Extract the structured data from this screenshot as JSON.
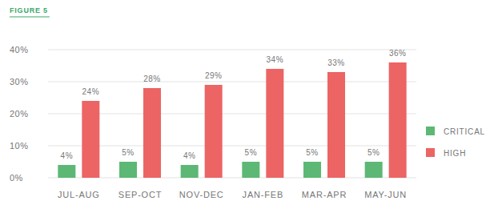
{
  "chart_data": {
    "type": "bar",
    "title": "FIGURE 5",
    "categories": [
      "JUL-AUG",
      "SEP-OCT",
      "NOV-DEC",
      "JAN-FEB",
      "MAR-APR",
      "MAY-JUN"
    ],
    "series": [
      {
        "name": "CRITICAL",
        "color": "#5cb874",
        "values": [
          4,
          5,
          4,
          5,
          5,
          5
        ],
        "value_labels": [
          "4%",
          "5%",
          "4%",
          "5%",
          "5%",
          "5%"
        ]
      },
      {
        "name": "HIGH",
        "color": "#ec6464",
        "values": [
          24,
          28,
          29,
          34,
          33,
          36
        ],
        "value_labels": [
          "24%",
          "28%",
          "29%",
          "34%",
          "33%",
          "36%"
        ]
      }
    ],
    "ylim": [
      0,
      40
    ],
    "yticks": [
      {
        "value": 0,
        "label": "0%"
      },
      {
        "value": 10,
        "label": "10%"
      },
      {
        "value": 20,
        "label": "20%"
      },
      {
        "value": 30,
        "label": "30%"
      },
      {
        "value": 40,
        "label": "40%"
      }
    ],
    "grid": true,
    "legend": "right",
    "data_labels": true
  }
}
